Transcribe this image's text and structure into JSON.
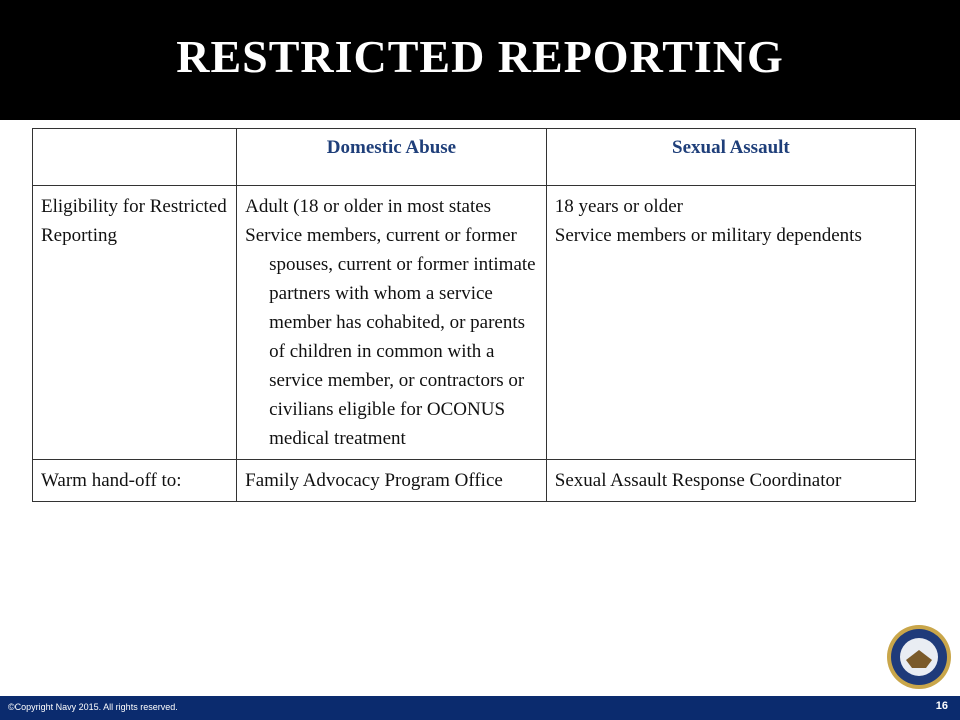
{
  "title": "RESTRICTED REPORTING",
  "table": {
    "columns": [
      "Domestic Abuse",
      "Sexual Assault"
    ],
    "rows": [
      {
        "label": "Eligibility for Restricted Reporting",
        "cells": [
          [
            "Adult (18 or older in most states",
            "Service members, current or former spouses, current or former intimate partners with whom a service member has cohabited, or parents of children in common with a service member, or contractors or civilians eligible for OCONUS medical treatment"
          ],
          [
            "18 years or older",
            "Service members or military dependents"
          ]
        ]
      },
      {
        "label": "Warm hand-off to:",
        "cells": [
          [
            "Family Advocacy Program Office"
          ],
          [
            "Sexual Assault Response Coordinator"
          ]
        ]
      }
    ]
  },
  "footer": {
    "copyright": "©Copyright Navy 2015.  All rights reserved.",
    "page": "16"
  }
}
